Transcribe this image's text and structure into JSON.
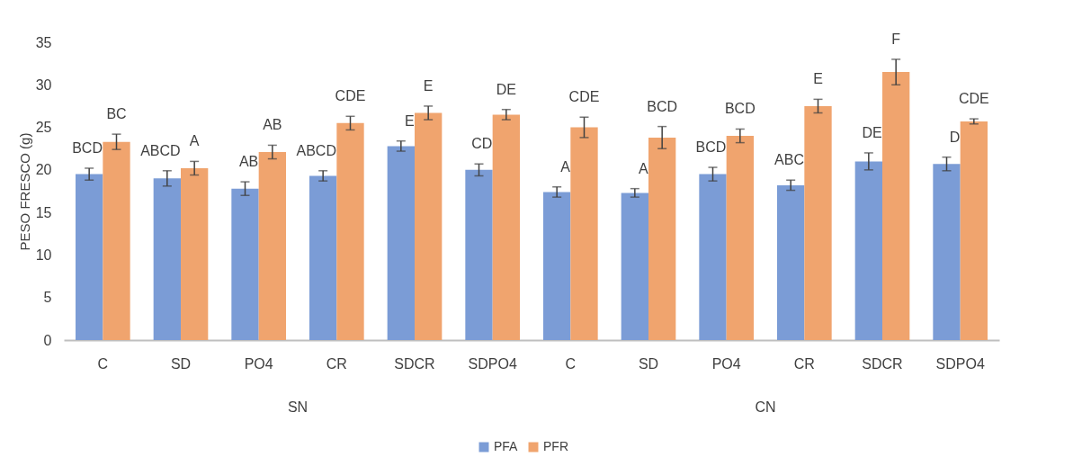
{
  "chart_data": {
    "type": "bar",
    "ylabel": "PESO FRESCO (g)",
    "categories": [
      "C",
      "SD",
      "PO4",
      "CR",
      "SDCR",
      "SDPO4",
      "C",
      "SD",
      "PO4",
      "CR",
      "SDCR",
      "SDPO4"
    ],
    "annotations": [
      "SN",
      "CN"
    ],
    "series": [
      {
        "name": "PFA",
        "color": "#7b9cd6",
        "values": [
          19.5,
          19.0,
          17.8,
          19.3,
          22.8,
          20.0,
          17.4,
          17.3,
          19.5,
          18.2,
          21.0,
          20.7
        ],
        "errors": [
          0.7,
          0.9,
          0.8,
          0.6,
          0.6,
          0.7,
          0.6,
          0.5,
          0.8,
          0.6,
          1.0,
          0.8
        ],
        "value_labels": [
          "BCD",
          "ABCD",
          "AB",
          "ABCD",
          "E",
          "CD",
          "A",
          "A",
          "BCD",
          "ABC",
          "DE",
          "D"
        ]
      },
      {
        "name": "PFR",
        "color": "#f0a46e",
        "values": [
          23.3,
          20.2,
          22.1,
          25.5,
          26.7,
          26.5,
          25.0,
          23.8,
          24.0,
          27.5,
          31.5,
          25.7
        ],
        "errors": [
          0.9,
          0.8,
          0.8,
          0.8,
          0.8,
          0.6,
          1.2,
          1.3,
          0.8,
          0.8,
          1.5,
          0.3
        ],
        "value_labels": [
          "BC",
          "A",
          "AB",
          "CDE",
          "E",
          "DE",
          "CDE",
          "BCD",
          "BCD",
          "E",
          "F",
          "CDE"
        ]
      }
    ],
    "ylim": [
      0,
      35
    ],
    "yticks": [
      0,
      5,
      10,
      15,
      20,
      25,
      30,
      35
    ],
    "grid": false,
    "legend": "bottom"
  }
}
